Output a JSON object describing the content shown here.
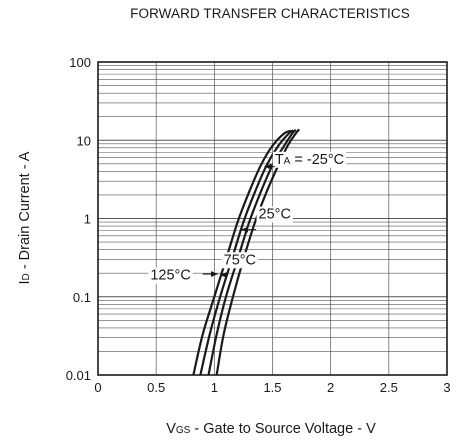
{
  "chart_data": {
    "type": "line",
    "title": "FORWARD TRANSFER CHARACTERISTICS",
    "xlabel": {
      "prefix": "V",
      "sub": "GS",
      "rest": " - Gate to Source Voltage - V"
    },
    "ylabel": {
      "prefix": "I",
      "sub": "D",
      "rest": " - Drain Current - A"
    },
    "xlim": [
      0,
      3
    ],
    "ylim": [
      0.01,
      100
    ],
    "yscale": "log",
    "grid": true,
    "x_ticks": [
      {
        "value": 0,
        "label": "0"
      },
      {
        "value": 0.5,
        "label": "0.5"
      },
      {
        "value": 1,
        "label": "1"
      },
      {
        "value": 1.5,
        "label": "1.5"
      },
      {
        "value": 2,
        "label": "2"
      },
      {
        "value": 2.5,
        "label": "2.5"
      },
      {
        "value": 3,
        "label": "3"
      }
    ],
    "y_ticks": [
      {
        "value": 0.01,
        "label": "0.01"
      },
      {
        "value": 0.1,
        "label": "0.1"
      },
      {
        "value": 1,
        "label": "1"
      },
      {
        "value": 10,
        "label": "10"
      },
      {
        "value": 100,
        "label": "100"
      }
    ],
    "series": [
      {
        "name": "125°C",
        "x": [
          0.82,
          0.9,
          1.0,
          1.1,
          1.2,
          1.3,
          1.4,
          1.5,
          1.6,
          1.66
        ],
        "y": [
          0.01,
          0.033,
          0.1,
          0.3,
          0.9,
          2.2,
          4.8,
          8.5,
          12.2,
          13.2
        ]
      },
      {
        "name": "75°C",
        "x": [
          0.88,
          0.96,
          1.05,
          1.15,
          1.25,
          1.35,
          1.45,
          1.55,
          1.64,
          1.68
        ],
        "y": [
          0.01,
          0.033,
          0.1,
          0.3,
          0.9,
          2.2,
          4.8,
          8.5,
          12.2,
          13.4
        ]
      },
      {
        "name": "25°C",
        "x": [
          0.95,
          1.02,
          1.1,
          1.2,
          1.3,
          1.4,
          1.5,
          1.6,
          1.67,
          1.7
        ],
        "y": [
          0.01,
          0.033,
          0.1,
          0.3,
          0.9,
          2.2,
          4.8,
          8.5,
          12.2,
          13.6
        ]
      },
      {
        "name": "-25°C",
        "x": [
          1.02,
          1.08,
          1.16,
          1.25,
          1.35,
          1.45,
          1.55,
          1.63,
          1.7,
          1.73
        ],
        "y": [
          0.01,
          0.033,
          0.1,
          0.3,
          0.9,
          2.2,
          4.8,
          8.5,
          12.2,
          13.8
        ]
      }
    ],
    "annotations": [
      {
        "series": "-25°C",
        "prefix": "T",
        "sub": "A",
        "rest": " = -25°C",
        "text_x": 1.52,
        "text_y": 5.0,
        "arrow_from": [
          1.52,
          4.6
        ],
        "arrow_to": [
          1.43,
          4.6
        ]
      },
      {
        "series": "25°C",
        "text": "25°C",
        "text_x": 1.38,
        "text_y": 1.0,
        "arrow_from": [
          1.36,
          0.72
        ],
        "arrow_to": [
          1.23,
          0.72
        ]
      },
      {
        "series": "75°C",
        "text": "75°C",
        "text_x": 1.08,
        "text_y": 0.26,
        "arrow_from": [
          1.07,
          0.19
        ],
        "arrow_to": [
          1.05,
          0.19
        ]
      },
      {
        "series": "125°C",
        "text": "125°C",
        "text_x": 0.45,
        "text_y": 0.165,
        "arrow_from": [
          0.9,
          0.195
        ],
        "arrow_to": [
          1.03,
          0.195
        ]
      }
    ]
  }
}
